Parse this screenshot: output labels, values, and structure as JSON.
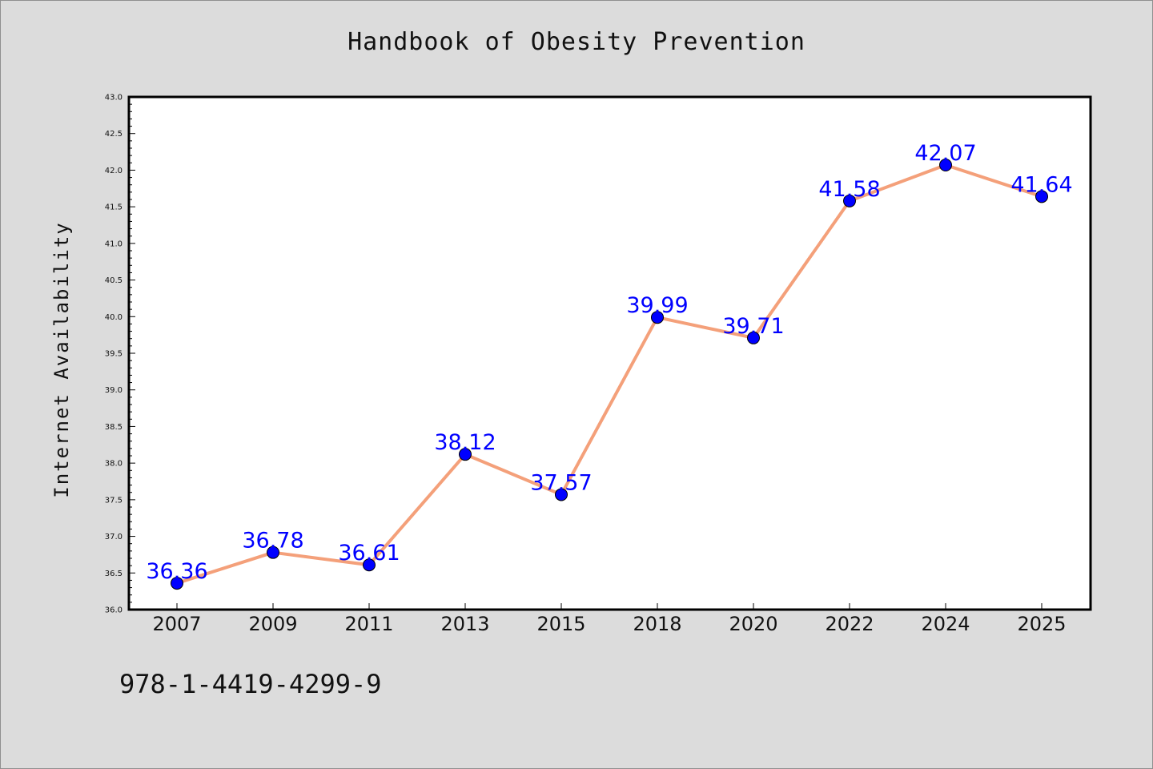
{
  "title": "Handbook of Obesity Prevention",
  "isbn": "978-1-4419-4299-9",
  "colors": {
    "background": "#dcdcdc",
    "plot_background": "#ffffff",
    "line": "#f4a07a",
    "marker": "#0000ff",
    "data_label": "#0000ff"
  },
  "chart_data": {
    "type": "line",
    "categories": [
      "2007",
      "2009",
      "2011",
      "2013",
      "2015",
      "2018",
      "2020",
      "2022",
      "2024",
      "2025"
    ],
    "series": [
      {
        "values": [
          36.36,
          36.78,
          36.61,
          38.12,
          37.57,
          39.99,
          39.71,
          41.58,
          42.07,
          41.64
        ]
      }
    ],
    "data_labels": [
      "36.36",
      "36.78",
      "36.61",
      "38.12",
      "37.57",
      "39.99",
      "39.71",
      "41.58",
      "42.07",
      "41.64"
    ],
    "ylabel": "Internet Availability",
    "xlabel": "",
    "ylim": [
      36.0,
      43.0
    ],
    "y_ticks": [
      "36.0",
      "36.5",
      "37.0",
      "37.5",
      "38.0",
      "38.5",
      "39.0",
      "39.5",
      "40.0",
      "40.5",
      "41.0",
      "41.5",
      "42.0",
      "42.5",
      "43.0"
    ],
    "grid": false,
    "legend": "none"
  }
}
